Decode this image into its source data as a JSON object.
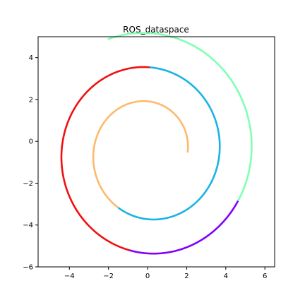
{
  "chart_data": {
    "type": "line",
    "title": "ROS_dataspace",
    "xlabel": "",
    "ylabel": "",
    "xlim": [
      -5.6,
      6.5
    ],
    "ylim": [
      -6,
      5
    ],
    "grid": false,
    "legend": "none",
    "x_ticks": [
      -4,
      -2,
      0,
      2,
      4,
      6
    ],
    "y_ticks": [
      -6,
      -4,
      -2,
      0,
      2,
      4
    ],
    "x_tick_labels": [
      "−4",
      "−2",
      "0",
      "2",
      "4",
      "6"
    ],
    "y_tick_labels": [
      "−6",
      "−4",
      "−2",
      "0",
      "2",
      "4"
    ],
    "spiral": {
      "theta_start": 0,
      "theta_end": 14.5,
      "center": [
        0.05,
        -0.5
      ],
      "r0": 2.0,
      "k": 0.26
    },
    "segments": [
      {
        "color": "#fdb96d",
        "theta": [
          0.0,
          4.2
        ]
      },
      {
        "color": "#1ab3e6",
        "theta": [
          4.2,
          7.85
        ]
      },
      {
        "color": "#f20f0f",
        "theta": [
          7.85,
          10.8
        ]
      },
      {
        "color": "#8000ff",
        "theta": [
          10.8,
          12.1
        ]
      },
      {
        "color": "#80ffb4",
        "theta": [
          12.1,
          14.5
        ]
      }
    ]
  }
}
